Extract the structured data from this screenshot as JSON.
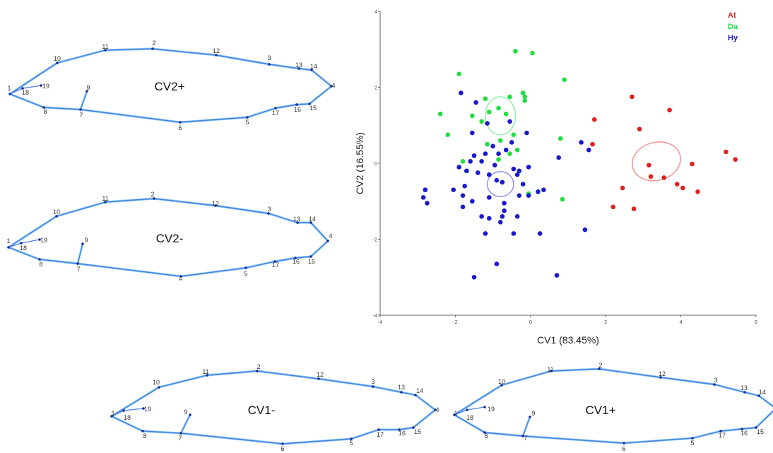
{
  "colors": {
    "At": "#dd2222",
    "Da": "#22dd44",
    "Hy": "#1a1acc",
    "outline": "#4a7fe0",
    "outline_light": "#8fd0f2"
  },
  "shapes": {
    "cv2_plus": {
      "title": "CV2+"
    },
    "cv2_minus": {
      "title": "CV2-"
    },
    "cv1_minus": {
      "title": "CV1-"
    },
    "cv1_plus": {
      "title": "CV1+"
    }
  },
  "landmark_labels": [
    "1",
    "2",
    "3",
    "4",
    "5",
    "6",
    "7",
    "8",
    "9",
    "10",
    "11",
    "12",
    "13",
    "14",
    "15",
    "16",
    "17",
    "18",
    "19"
  ],
  "chart_data": {
    "type": "scatter",
    "title": "",
    "xlabel": "CV1 (83.45%)",
    "ylabel": "CV2 (16.55%)",
    "xlim": [
      -4,
      6
    ],
    "ylim": [
      -4,
      4
    ],
    "xticks": [
      "-4",
      "-2",
      "0",
      "2",
      "4",
      "6"
    ],
    "yticks": [
      "-4",
      "-2",
      "0",
      "2",
      "4"
    ],
    "grid": false,
    "legend_position": "top-right",
    "series": [
      {
        "name": "At",
        "color": "#dd2222",
        "points": [
          [
            1.7,
            1.15
          ],
          [
            1.65,
            0.5
          ],
          [
            2.7,
            1.75
          ],
          [
            2.9,
            0.9
          ],
          [
            3.7,
            1.4
          ],
          [
            5.2,
            0.3
          ],
          [
            5.45,
            0.1
          ],
          [
            3.15,
            -0.05
          ],
          [
            3.2,
            -0.35
          ],
          [
            3.55,
            -0.38
          ],
          [
            4.3,
            -0.02
          ],
          [
            3.9,
            -0.55
          ],
          [
            4.05,
            -0.65
          ],
          [
            4.45,
            -0.75
          ],
          [
            2.45,
            -0.65
          ],
          [
            2.2,
            -1.15
          ],
          [
            2.75,
            -1.2
          ]
        ],
        "ellipse": {
          "cx": 3.35,
          "cy": 0.05,
          "rx": 0.65,
          "ry": 0.5,
          "angle": 15
        }
      },
      {
        "name": "Da",
        "color": "#22dd44",
        "points": [
          [
            -0.4,
            2.95
          ],
          [
            0.05,
            2.9
          ],
          [
            -1.9,
            2.35
          ],
          [
            0.9,
            2.2
          ],
          [
            -2.4,
            1.3
          ],
          [
            -1.2,
            1.7
          ],
          [
            -1.1,
            1.35
          ],
          [
            -0.85,
            1.45
          ],
          [
            -0.55,
            1.75
          ],
          [
            -0.15,
            1.75
          ],
          [
            -0.2,
            1.85
          ],
          [
            -0.15,
            1.65
          ],
          [
            -1.55,
            1.25
          ],
          [
            -1.3,
            1.1
          ],
          [
            -0.65,
            1.3
          ],
          [
            -2.2,
            0.75
          ],
          [
            -0.45,
            0.75
          ],
          [
            -0.35,
            0.35
          ],
          [
            0.8,
            0.65
          ],
          [
            -1.15,
            0.5
          ],
          [
            -0.8,
            0.6
          ],
          [
            -0.55,
            0.25
          ],
          [
            -1.8,
            0.05
          ],
          [
            -1.7,
            -0.2
          ],
          [
            -0.85,
            0.1
          ],
          [
            -0.05,
            -0.8
          ],
          [
            0.85,
            -0.95
          ]
        ],
        "ellipse": {
          "cx": -0.8,
          "cy": 1.25,
          "rx": 0.4,
          "ry": 0.5,
          "angle": 0
        }
      },
      {
        "name": "Hy",
        "color": "#1a1acc",
        "points": [
          [
            -1.85,
            1.85
          ],
          [
            -1.55,
            0.8
          ],
          [
            -1.45,
            1.6
          ],
          [
            -1.15,
            1.05
          ],
          [
            -0.55,
            1.1
          ],
          [
            -0.1,
            0.8
          ],
          [
            -0.5,
            0.55
          ],
          [
            -0.65,
            0.35
          ],
          [
            -1.0,
            0.45
          ],
          [
            -0.85,
            0.25
          ],
          [
            -0.95,
            -0.05
          ],
          [
            -1.3,
            0.05
          ],
          [
            -1.5,
            0.2
          ],
          [
            -1.6,
            0.05
          ],
          [
            -1.2,
            0.25
          ],
          [
            -1.7,
            -0.2
          ],
          [
            -1.9,
            -0.1
          ],
          [
            -1.4,
            -0.25
          ],
          [
            -1.1,
            -0.3
          ],
          [
            -0.9,
            -0.45
          ],
          [
            -0.75,
            -0.5
          ],
          [
            -0.45,
            -0.15
          ],
          [
            -0.35,
            -0.3
          ],
          [
            -0.3,
            -0.2
          ],
          [
            -0.05,
            -0.1
          ],
          [
            -0.2,
            -0.55
          ],
          [
            -2.05,
            -0.7
          ],
          [
            -1.75,
            -0.6
          ],
          [
            -1.8,
            -0.85
          ],
          [
            -1.55,
            -1.0
          ],
          [
            -1.8,
            -1.15
          ],
          [
            -1.1,
            -0.9
          ],
          [
            -0.7,
            -1.05
          ],
          [
            -0.3,
            -0.85
          ],
          [
            -0.05,
            -0.85
          ],
          [
            -1.3,
            -1.4
          ],
          [
            -1.1,
            -1.45
          ],
          [
            -0.8,
            -1.55
          ],
          [
            -0.7,
            -1.25
          ],
          [
            -0.75,
            -1.4
          ],
          [
            -0.35,
            -1.4
          ],
          [
            -1.2,
            -1.85
          ],
          [
            -0.45,
            -1.85
          ],
          [
            0.25,
            -1.85
          ],
          [
            0.2,
            -0.75
          ],
          [
            0.35,
            -0.7
          ],
          [
            -2.8,
            -0.7
          ],
          [
            -2.85,
            -0.9
          ],
          [
            -2.75,
            -1.05
          ],
          [
            0.75,
            0.15
          ],
          [
            1.35,
            0.55
          ],
          [
            1.55,
            0.35
          ],
          [
            1.45,
            -1.75
          ],
          [
            -0.9,
            -2.65
          ],
          [
            -1.5,
            -3.0
          ],
          [
            0.7,
            -2.95
          ]
        ],
        "ellipse": {
          "cx": -0.8,
          "cy": -0.55,
          "rx": 0.35,
          "ry": 0.33,
          "angle": 0
        }
      }
    ]
  }
}
